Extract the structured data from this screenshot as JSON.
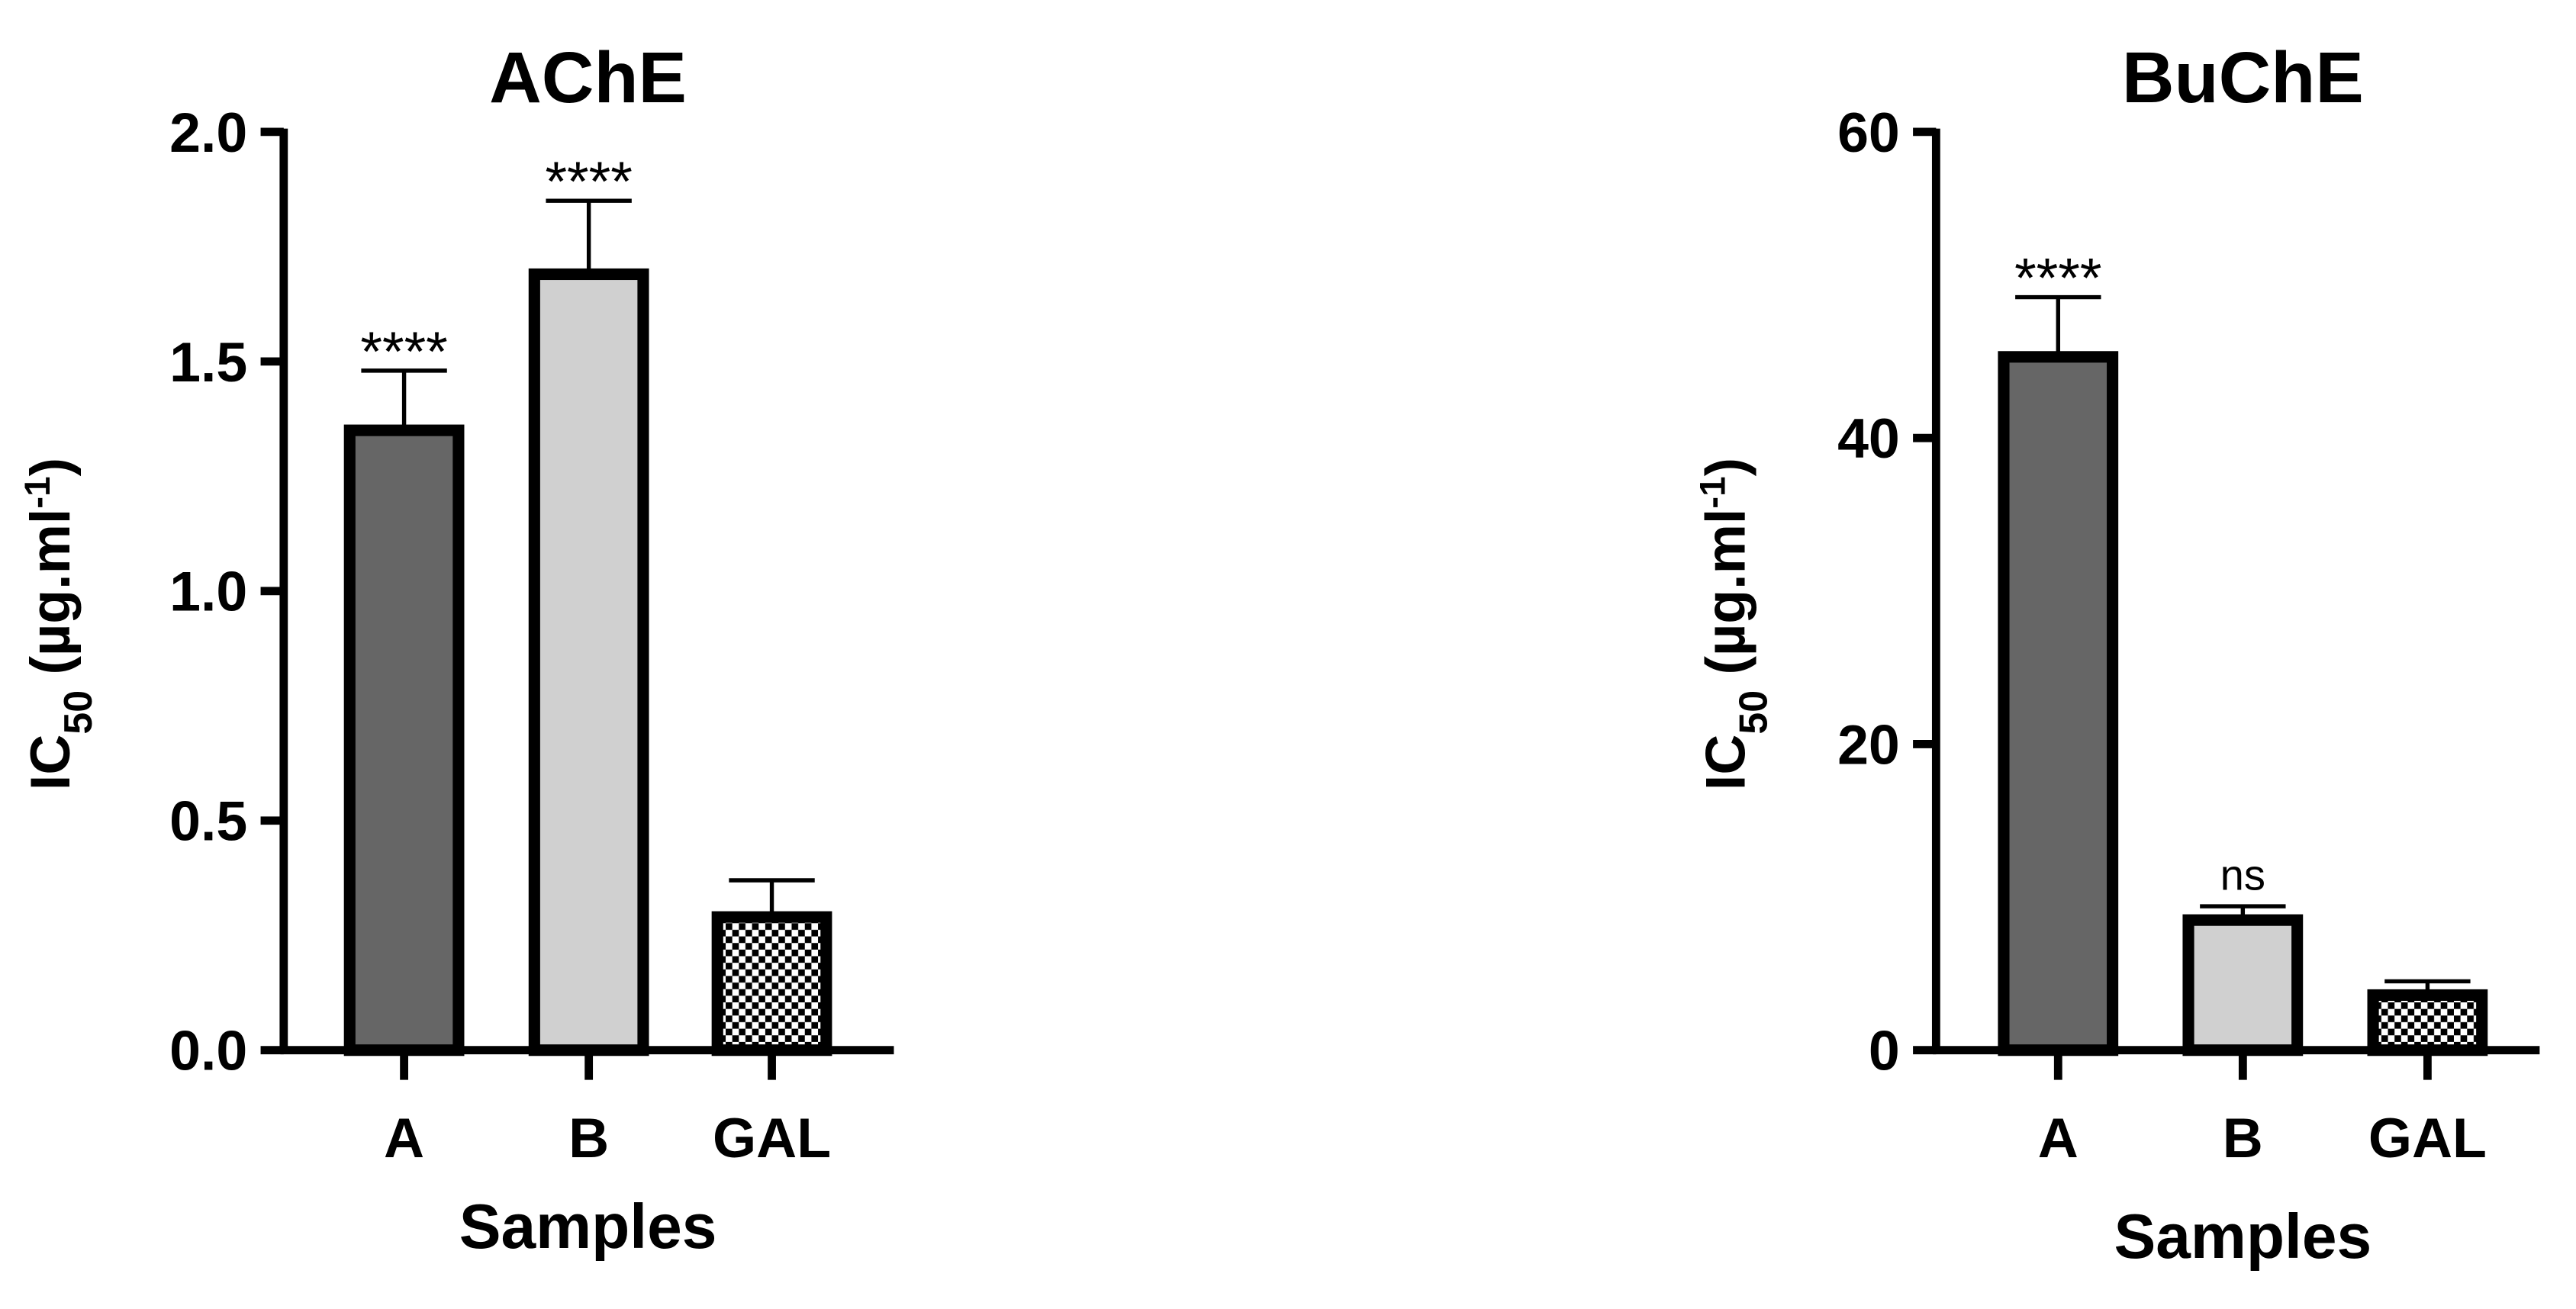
{
  "chart_data": [
    {
      "type": "bar",
      "title": "AChE",
      "x_label": "Samples",
      "y_label": {
        "main": "IC",
        "sub": "50",
        "rest": " (µg.ml",
        "sup": "-1",
        "end": ")"
      },
      "categories": [
        "A",
        "B",
        "GAL"
      ],
      "values": [
        1.35,
        1.69,
        0.29
      ],
      "errors": [
        0.13,
        0.16,
        0.08
      ],
      "annotations": [
        "****",
        "****",
        null
      ],
      "colors": [
        "#666666",
        "#d0d0d0",
        "checker"
      ],
      "ylim": [
        0,
        2.0
      ],
      "yticks": [
        {
          "value": 0,
          "label": "0.0"
        },
        0.5,
        {
          "value": 1,
          "label": "1.0"
        },
        1.5,
        {
          "value": 2,
          "label": "2.0"
        }
      ]
    },
    {
      "type": "bar",
      "title": "BuChE",
      "x_label": "Samples",
      "y_label": {
        "main": "IC",
        "sub": "50",
        "rest": " (µg.ml",
        "sup": "-1",
        "end": ")"
      },
      "categories": [
        "A",
        "B",
        "GAL"
      ],
      "values": [
        45.3,
        8.5,
        3.6
      ],
      "errors": [
        3.9,
        0.9,
        0.9
      ],
      "annotations": [
        "****",
        "ns",
        null
      ],
      "colors": [
        "#666666",
        "#d0d0d0",
        "checker"
      ],
      "ylim": [
        0,
        60
      ],
      "yticks": [
        0,
        20,
        40,
        60
      ]
    }
  ]
}
